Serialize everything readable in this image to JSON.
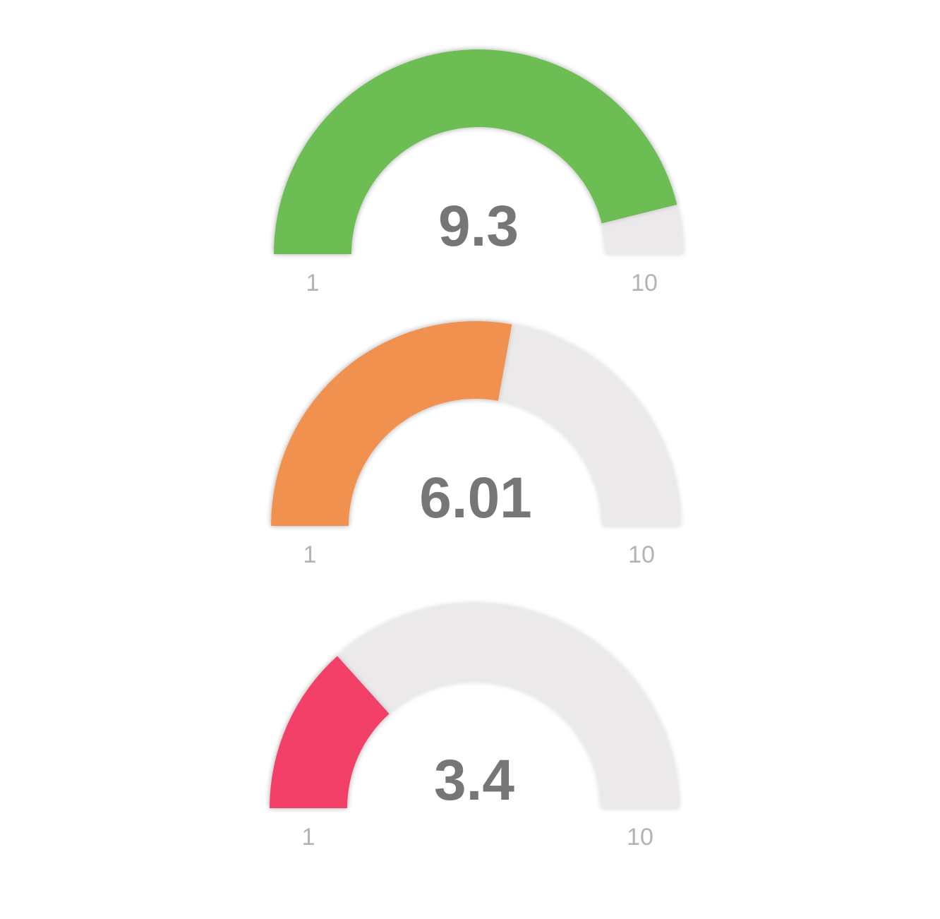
{
  "chart_data": [
    {
      "type": "gauge",
      "value": 9.3,
      "value_label": "9.3",
      "min": 1,
      "max": 10,
      "min_label": "1",
      "max_label": "10",
      "color": "#6dbd54",
      "track_color": "#ebe9ea"
    },
    {
      "type": "gauge",
      "value": 6.01,
      "value_label": "6.01",
      "min": 1,
      "max": 10,
      "min_label": "1",
      "max_label": "10",
      "color": "#f09150",
      "track_color": "#ebe9ea"
    },
    {
      "type": "gauge",
      "value": 3.4,
      "value_label": "3.4",
      "min": 1,
      "max": 10,
      "min_label": "1",
      "max_label": "10",
      "color": "#f23f68",
      "track_color": "#ebe9ea"
    }
  ]
}
